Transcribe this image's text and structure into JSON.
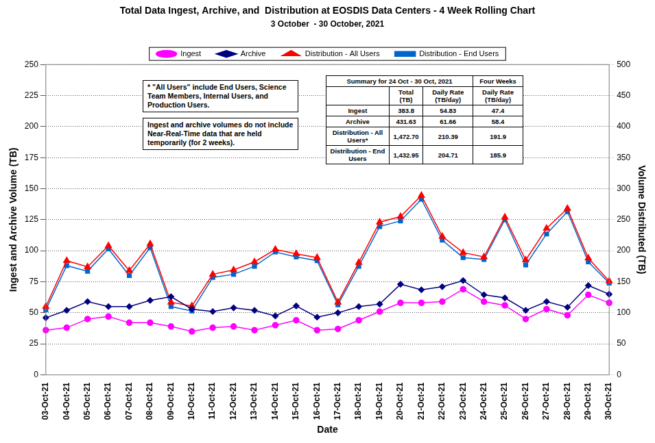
{
  "chart_data": {
    "type": "line",
    "title": "Total Data Ingest, Archive, and  Distribution at EOSDIS Data Centers - 4 Week Rolling Chart",
    "subtitle": "3 October  - 30 October, 2021",
    "x_label": "Date",
    "y_label": "Ingest and Archive Volume (TB)",
    "y2_label": "Volume Distributed (TB)",
    "categories": [
      "03-Oct-21",
      "04-Oct-21",
      "05-Oct-21",
      "06-Oct-21",
      "07-Oct-21",
      "08-Oct-21",
      "09-Oct-21",
      "10-Oct-21",
      "11-Oct-21",
      "12-Oct-21",
      "13-Oct-21",
      "14-Oct-21",
      "15-Oct-21",
      "16-Oct-21",
      "17-Oct-21",
      "18-Oct-21",
      "19-Oct-21",
      "20-Oct-21",
      "21-Oct-21",
      "22-Oct-21",
      "23-Oct-21",
      "24-Oct-21",
      "25-Oct-21",
      "26-Oct-21",
      "27-Oct-21",
      "28-Oct-21",
      "29-Oct-21",
      "30-Oct-21"
    ],
    "series": [
      {
        "name": "Ingest",
        "color": "#ff00ff",
        "marker": "circle",
        "values": [
          36,
          38,
          45,
          47,
          42,
          42,
          39,
          35,
          38,
          39,
          36,
          40,
          44,
          36,
          37,
          44,
          51,
          58,
          58,
          59,
          69,
          59,
          56,
          45,
          53,
          48,
          64.5,
          58
        ]
      },
      {
        "name": "Archive",
        "color": "#000080",
        "marker": "diamond",
        "values": [
          46,
          52,
          59,
          55,
          55,
          60,
          63,
          53,
          51,
          54,
          52,
          47.5,
          55.5,
          46.5,
          50,
          55,
          57,
          73,
          68.5,
          71,
          76,
          64.5,
          62,
          52,
          59,
          54.5,
          72,
          65
        ]
      },
      {
        "name": "Distribution - All Users",
        "color": "#ff0000",
        "marker": "triangle",
        "axis": "y2",
        "values": [
          110,
          184,
          174,
          208,
          168,
          211,
          117,
          111,
          162,
          169,
          182,
          202,
          195,
          189,
          117,
          181,
          246,
          255,
          289,
          223,
          197,
          190,
          254,
          185,
          236,
          268,
          188,
          151
        ]
      },
      {
        "name": "Distribution - End Users",
        "color": "#0066cc",
        "marker": "square",
        "axis": "y2",
        "values": [
          105,
          176,
          167,
          203,
          160,
          205,
          110,
          103,
          157,
          162,
          175,
          198,
          190,
          184,
          113,
          175,
          239,
          248,
          283,
          217,
          189,
          186,
          250,
          177,
          227,
          263,
          182,
          148
        ]
      }
    ],
    "ylim": [
      0,
      250
    ],
    "yticks": [
      0,
      25,
      50,
      75,
      100,
      125,
      150,
      175,
      200,
      225,
      250
    ],
    "y2lim": [
      0,
      500
    ],
    "y2ticks": [
      0,
      50,
      100,
      150,
      200,
      250,
      300,
      350,
      400,
      450,
      500
    ],
    "grid": true,
    "legend": "top",
    "annotations": [
      "* \"All Users\" include End Users, Science Team Members, Internal Users, and Production Users.",
      "Ingest and archive volumes do not include Near-Real-Time data that are held temporarily (for 2 weeks)."
    ],
    "summary_table": {
      "header": [
        "Summary for 24 Oct  - 30 Oct, 2021",
        "Four Weeks"
      ],
      "columns": [
        "Total (TB)",
        "Daily Rate (TB/day)",
        "Daily Rate (TB/day)"
      ],
      "rows": [
        {
          "label": "Ingest",
          "cells": [
            "383.8",
            "54.83",
            "47.4"
          ]
        },
        {
          "label": "Archive",
          "cells": [
            "431.63",
            "61.66",
            "58.4"
          ]
        },
        {
          "label": "Distribution - All Users*",
          "cells": [
            "1,472.70",
            "210.39",
            "191.9"
          ]
        },
        {
          "label": "Distribution - End Users",
          "cells": [
            "1,432.95",
            "204.71",
            "185.9"
          ]
        }
      ]
    }
  }
}
